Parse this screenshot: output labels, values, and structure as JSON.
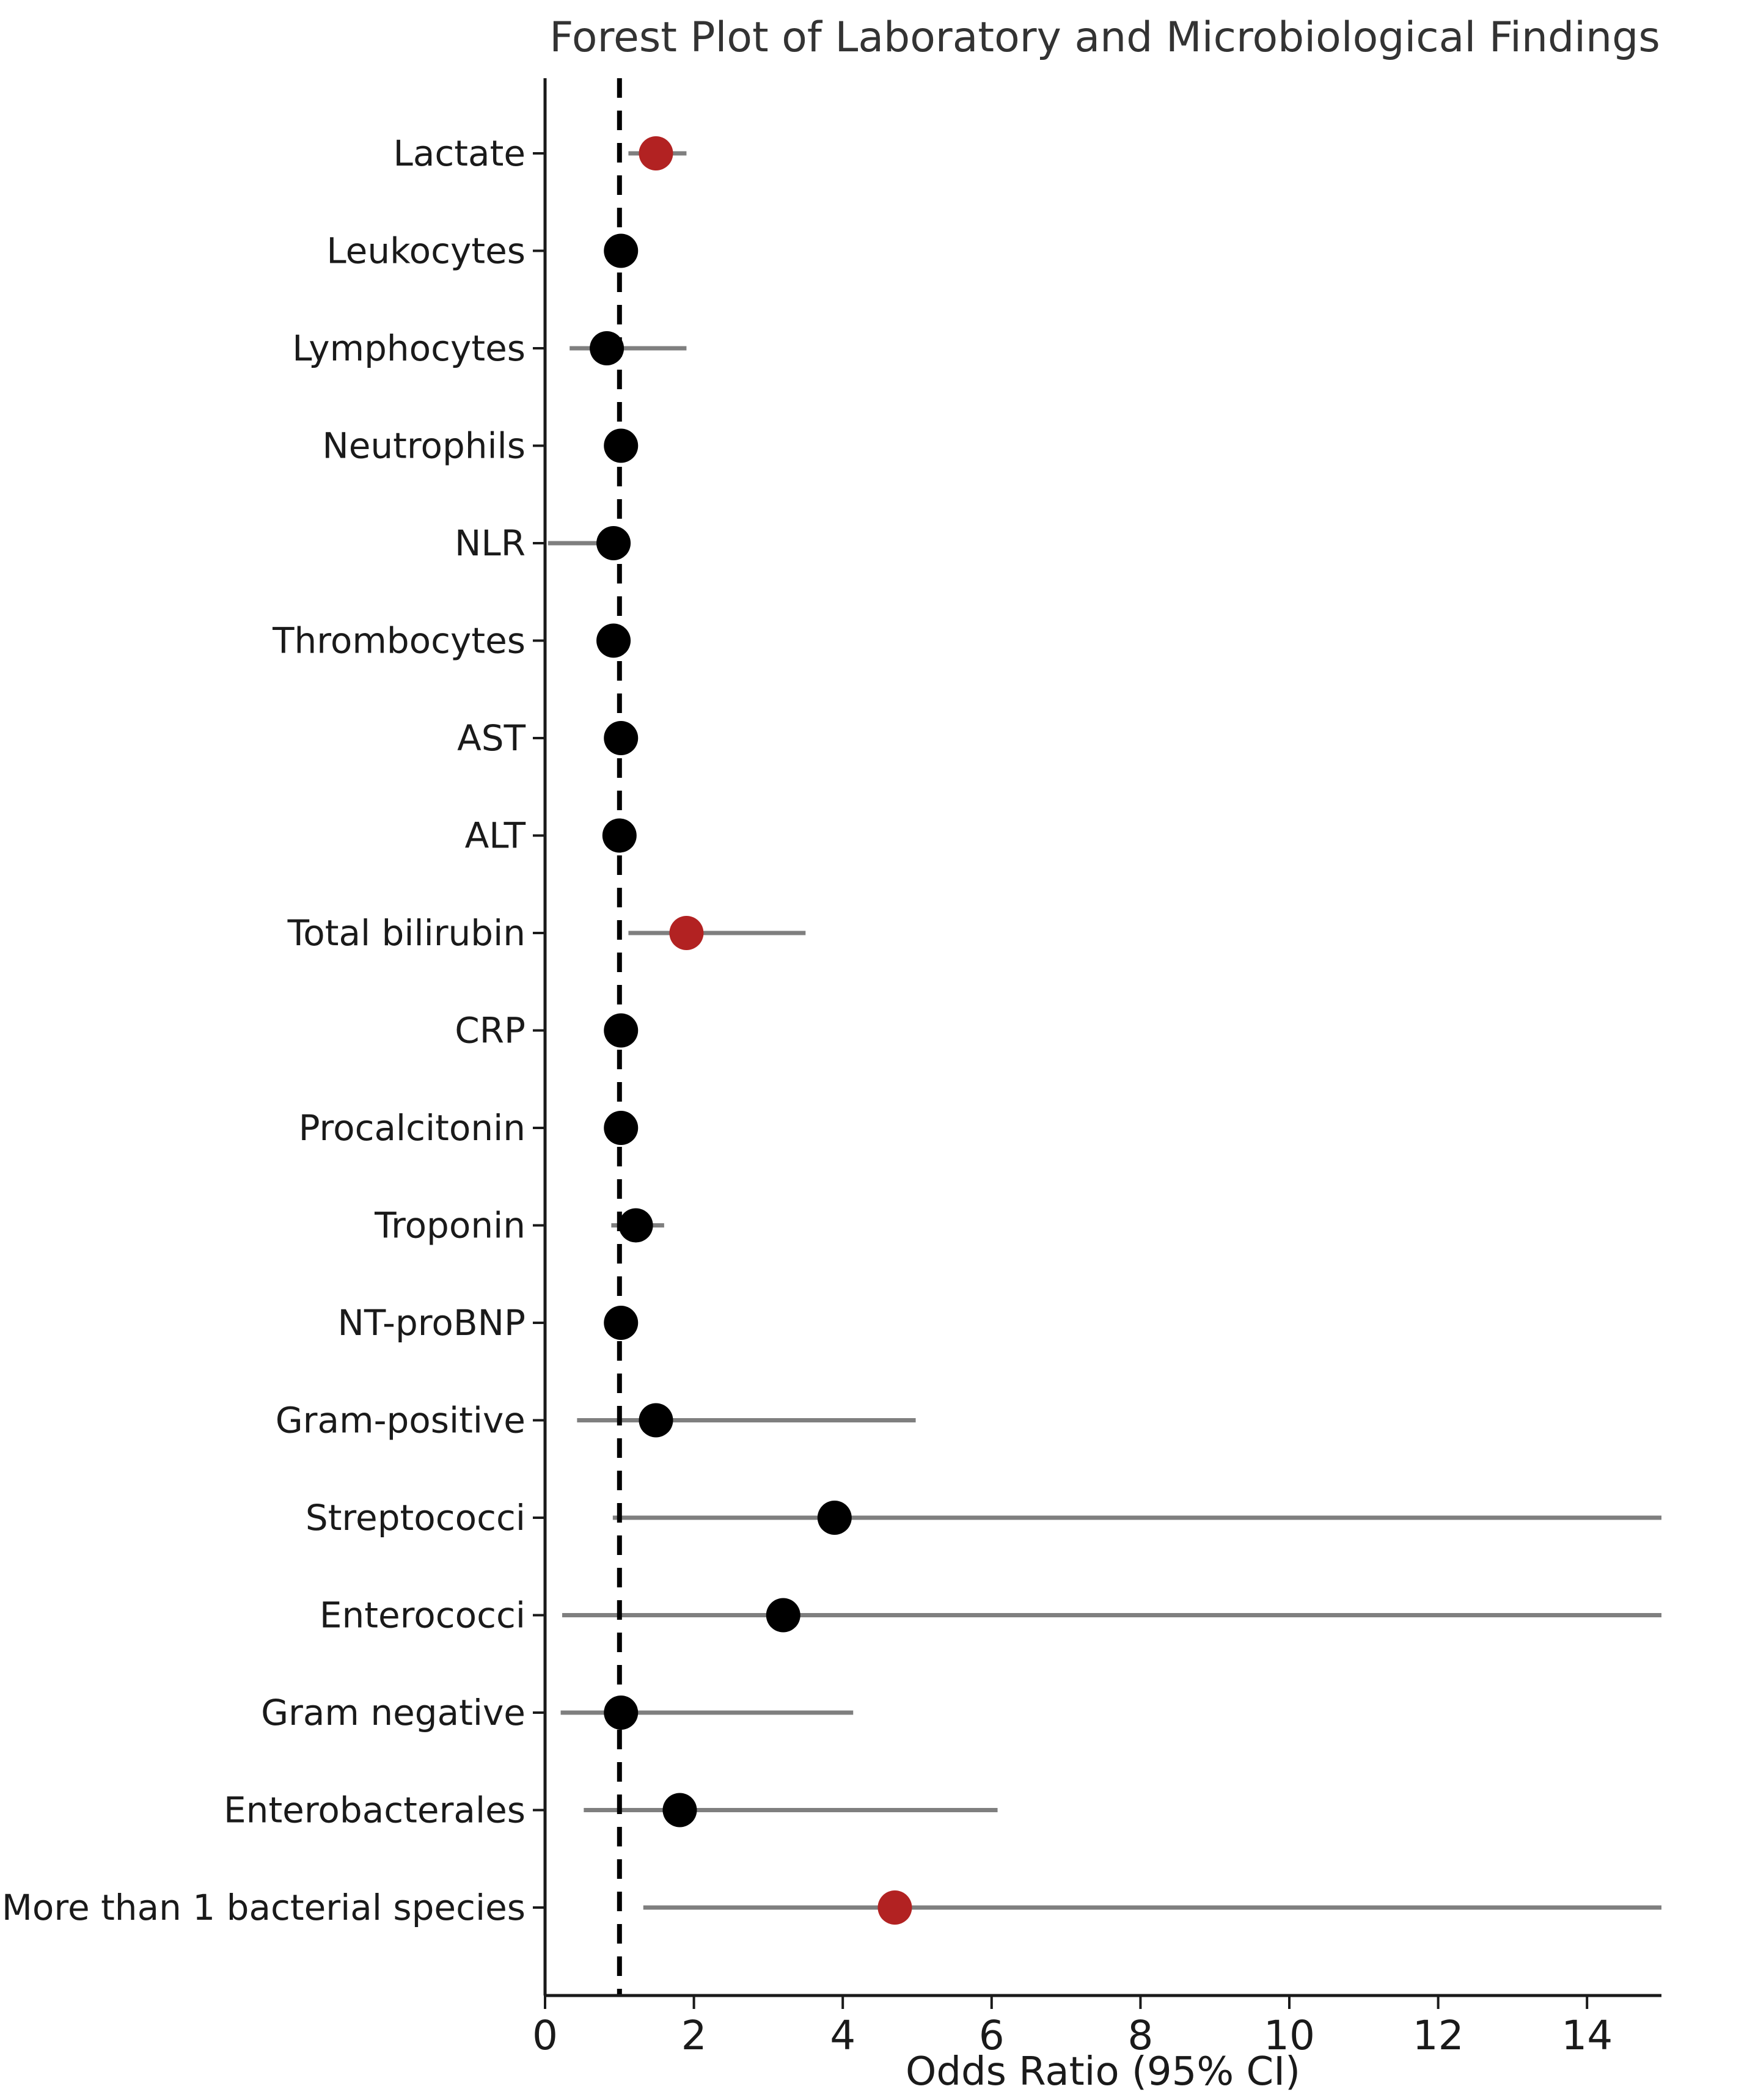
{
  "chart_data": {
    "type": "scatter",
    "subtype": "forest-plot",
    "title": "Forest Plot of Laboratory and Microbiological Findings",
    "xlabel": "Odds Ratio (95% CI)",
    "xlim": [
      0,
      15
    ],
    "x_ticks": [
      0,
      2,
      4,
      6,
      8,
      10,
      12,
      14
    ],
    "reference_line_x": 1,
    "grid": false,
    "legend": "none",
    "colors": {
      "default_marker": "#000000",
      "significant_marker": "#b22222",
      "ci_line": "#7f7f7f",
      "axis": "#1a1a1a",
      "reference_line": "#000000"
    },
    "rows": [
      {
        "label": "Lactate",
        "or": 1.49,
        "ci_low": 1.12,
        "ci_high": 1.9,
        "ci_clipped": false,
        "significant": true
      },
      {
        "label": "Leukocytes",
        "or": 1.02,
        "ci_low": 0.95,
        "ci_high": 1.1,
        "ci_clipped": false,
        "significant": false
      },
      {
        "label": "Lymphocytes",
        "or": 0.83,
        "ci_low": 0.33,
        "ci_high": 1.9,
        "ci_clipped": false,
        "significant": false
      },
      {
        "label": "Neutrophils",
        "or": 1.02,
        "ci_low": 0.96,
        "ci_high": 1.09,
        "ci_clipped": false,
        "significant": false
      },
      {
        "label": "NLR",
        "or": 0.92,
        "ci_low": 0.04,
        "ci_high": 1.0,
        "ci_clipped": false,
        "significant": false
      },
      {
        "label": "Thrombocytes",
        "or": 0.92,
        "ci_low": 0.86,
        "ci_high": 0.98,
        "ci_clipped": false,
        "significant": false
      },
      {
        "label": "AST",
        "or": 1.02,
        "ci_low": 0.96,
        "ci_high": 1.09,
        "ci_clipped": false,
        "significant": false
      },
      {
        "label": "ALT",
        "or": 1.0,
        "ci_low": 0.94,
        "ci_high": 1.07,
        "ci_clipped": false,
        "significant": false
      },
      {
        "label": "Total bilirubin",
        "or": 1.9,
        "ci_low": 1.12,
        "ci_high": 3.5,
        "ci_clipped": false,
        "significant": true
      },
      {
        "label": "CRP",
        "or": 1.02,
        "ci_low": 0.96,
        "ci_high": 1.09,
        "ci_clipped": false,
        "significant": false
      },
      {
        "label": "Procalcitonin",
        "or": 1.02,
        "ci_low": 0.96,
        "ci_high": 1.09,
        "ci_clipped": false,
        "significant": false
      },
      {
        "label": "Troponin",
        "or": 1.22,
        "ci_low": 0.89,
        "ci_high": 1.6,
        "ci_clipped": false,
        "significant": false
      },
      {
        "label": "NT-proBNP",
        "or": 1.02,
        "ci_low": 0.96,
        "ci_high": 1.09,
        "ci_clipped": false,
        "significant": false
      },
      {
        "label": "Gram-positive",
        "or": 1.49,
        "ci_low": 0.43,
        "ci_high": 4.98,
        "ci_clipped": false,
        "significant": false
      },
      {
        "label": "Streptococci",
        "or": 3.89,
        "ci_low": 0.91,
        "ci_high": 15.0,
        "ci_clipped": true,
        "significant": false
      },
      {
        "label": "Enterococci",
        "or": 3.2,
        "ci_low": 0.23,
        "ci_high": 15.0,
        "ci_clipped": true,
        "significant": false
      },
      {
        "label": "Gram negative",
        "or": 1.02,
        "ci_low": 0.21,
        "ci_high": 4.14,
        "ci_clipped": false,
        "significant": false
      },
      {
        "label": "Enterobacterales",
        "or": 1.81,
        "ci_low": 0.52,
        "ci_high": 6.08,
        "ci_clipped": false,
        "significant": false
      },
      {
        "label": "More than 1 bacterial species",
        "or": 4.7,
        "ci_low": 1.32,
        "ci_high": 15.0,
        "ci_clipped": true,
        "significant": true
      }
    ]
  }
}
